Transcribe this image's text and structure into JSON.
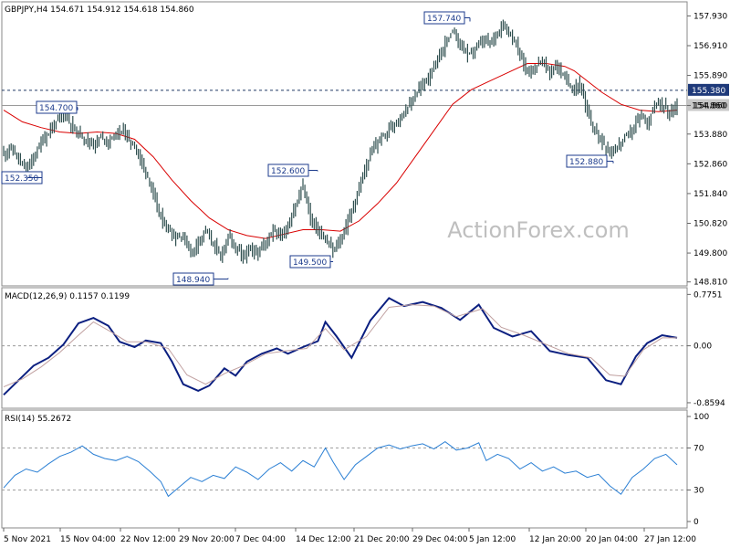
{
  "header": {
    "text": "GBPJPY,H4  154.671 154.912 154.618 154.860"
  },
  "watermark": "ActionForex.com",
  "chart_data": [
    {
      "type": "candlestick",
      "title": "GBPJPY,H4  154.671 154.912 154.618 154.860",
      "ylim": [
        148.8,
        158.1
      ],
      "y_ticks": [
        "157.930",
        "156.910",
        "155.890",
        "154.860",
        "153.880",
        "152.860",
        "151.840",
        "150.820",
        "149.800",
        "148.810"
      ],
      "x_ticks": [
        "5 Nov 2021",
        "15 Nov 04:00",
        "22 Nov 12:00",
        "29 Nov 20:00",
        "7 Dec 04:00",
        "14 Dec 12:00",
        "21 Dec 20:00",
        "29 Dec 04:00",
        "5 Jan 12:00",
        "12 Jan 20:00",
        "20 Jan 04:00",
        "27 Jan 12:00"
      ],
      "levels": [
        {
          "value": 155.38,
          "label": "155.380",
          "style": "dashed"
        },
        {
          "value": 154.86,
          "label": "154.860",
          "style": "solid"
        }
      ],
      "annotations": [
        {
          "label": "152.350",
          "value": 152.35
        },
        {
          "label": "154.700",
          "value": 154.7
        },
        {
          "label": "148.940",
          "value": 148.94
        },
        {
          "label": "152.600",
          "value": 152.6
        },
        {
          "label": "149.500",
          "value": 149.5
        },
        {
          "label": "157.740",
          "value": 157.74
        },
        {
          "label": "152.880",
          "value": 152.88
        }
      ],
      "close_path": [
        [
          0,
          153.2
        ],
        [
          4,
          153.4
        ],
        [
          8,
          153.0
        ],
        [
          12,
          152.6
        ],
        [
          16,
          153.1
        ],
        [
          20,
          153.6
        ],
        [
          24,
          153.9
        ],
        [
          28,
          154.3
        ],
        [
          32,
          154.6
        ],
        [
          36,
          154.2
        ],
        [
          40,
          153.9
        ],
        [
          44,
          153.7
        ],
        [
          48,
          153.5
        ],
        [
          52,
          153.8
        ],
        [
          56,
          153.6
        ],
        [
          60,
          153.9
        ],
        [
          64,
          154.0
        ],
        [
          68,
          153.6
        ],
        [
          72,
          153.2
        ],
        [
          76,
          152.6
        ],
        [
          80,
          151.8
        ],
        [
          84,
          151.0
        ],
        [
          88,
          150.6
        ],
        [
          92,
          150.3
        ],
        [
          96,
          150.4
        ],
        [
          100,
          149.8
        ],
        [
          104,
          150.2
        ],
        [
          108,
          150.6
        ],
        [
          112,
          150.1
        ],
        [
          116,
          149.7
        ],
        [
          120,
          150.4
        ],
        [
          124,
          150.0
        ],
        [
          128,
          149.7
        ],
        [
          132,
          149.9
        ],
        [
          136,
          149.8
        ],
        [
          140,
          150.2
        ],
        [
          144,
          150.6
        ],
        [
          148,
          150.4
        ],
        [
          152,
          150.7
        ],
        [
          156,
          151.4
        ],
        [
          160,
          152.1
        ],
        [
          164,
          151.0
        ],
        [
          168,
          150.6
        ],
        [
          172,
          150.2
        ],
        [
          176,
          149.9
        ],
        [
          180,
          150.2
        ],
        [
          184,
          150.9
        ],
        [
          188,
          151.6
        ],
        [
          192,
          152.4
        ],
        [
          196,
          153.2
        ],
        [
          200,
          153.6
        ],
        [
          204,
          153.9
        ],
        [
          208,
          154.2
        ],
        [
          212,
          154.5
        ],
        [
          216,
          154.8
        ],
        [
          220,
          155.2
        ],
        [
          224,
          155.6
        ],
        [
          228,
          155.9
        ],
        [
          232,
          156.4
        ],
        [
          236,
          157.0
        ],
        [
          240,
          157.4
        ],
        [
          244,
          157.0
        ],
        [
          248,
          156.6
        ],
        [
          252,
          156.8
        ],
        [
          256,
          157.1
        ],
        [
          260,
          157.0
        ],
        [
          264,
          157.4
        ],
        [
          268,
          157.6
        ],
        [
          272,
          157.2
        ],
        [
          276,
          156.6
        ],
        [
          280,
          156.0
        ],
        [
          284,
          156.2
        ],
        [
          288,
          156.4
        ],
        [
          292,
          156.0
        ],
        [
          296,
          156.2
        ],
        [
          300,
          155.8
        ],
        [
          304,
          155.4
        ],
        [
          308,
          155.6
        ],
        [
          312,
          154.6
        ],
        [
          316,
          154.0
        ],
        [
          320,
          153.6
        ],
        [
          324,
          153.2
        ],
        [
          328,
          153.4
        ],
        [
          332,
          153.8
        ],
        [
          336,
          154.0
        ],
        [
          340,
          154.5
        ],
        [
          344,
          154.3
        ],
        [
          348,
          154.8
        ],
        [
          352,
          154.9
        ],
        [
          356,
          154.6
        ],
        [
          360,
          154.86
        ]
      ],
      "ma_path": [
        [
          0,
          154.7
        ],
        [
          10,
          154.3
        ],
        [
          20,
          154.1
        ],
        [
          30,
          153.95
        ],
        [
          40,
          153.9
        ],
        [
          50,
          153.95
        ],
        [
          60,
          153.9
        ],
        [
          70,
          153.7
        ],
        [
          80,
          153.1
        ],
        [
          90,
          152.3
        ],
        [
          100,
          151.6
        ],
        [
          110,
          151.0
        ],
        [
          120,
          150.6
        ],
        [
          130,
          150.4
        ],
        [
          140,
          150.3
        ],
        [
          150,
          150.45
        ],
        [
          160,
          150.6
        ],
        [
          170,
          150.6
        ],
        [
          180,
          150.55
        ],
        [
          190,
          150.9
        ],
        [
          200,
          151.5
        ],
        [
          210,
          152.2
        ],
        [
          220,
          153.1
        ],
        [
          230,
          154.0
        ],
        [
          240,
          154.9
        ],
        [
          250,
          155.4
        ],
        [
          260,
          155.7
        ],
        [
          270,
          156.0
        ],
        [
          280,
          156.3
        ],
        [
          290,
          156.3
        ],
        [
          300,
          156.2
        ],
        [
          305,
          156.05
        ],
        [
          310,
          155.8
        ],
        [
          320,
          155.3
        ],
        [
          330,
          154.9
        ],
        [
          340,
          154.7
        ],
        [
          350,
          154.65
        ],
        [
          360,
          154.7
        ]
      ]
    },
    {
      "type": "line",
      "title": "MACD(12,26,9) 0.1157 0.1199",
      "ylim": [
        -0.86,
        0.78
      ],
      "y_ticks": [
        "0.7751",
        "0.00",
        "-0.8594"
      ],
      "series": [
        {
          "name": "MACD",
          "values": [
            [
              0,
              -0.74
            ],
            [
              8,
              -0.52
            ],
            [
              16,
              -0.3
            ],
            [
              24,
              -0.18
            ],
            [
              32,
              0.02
            ],
            [
              40,
              0.34
            ],
            [
              48,
              0.42
            ],
            [
              56,
              0.3
            ],
            [
              62,
              0.06
            ],
            [
              70,
              -0.02
            ],
            [
              76,
              0.08
            ],
            [
              84,
              0.04
            ],
            [
              90,
              -0.24
            ],
            [
              96,
              -0.58
            ],
            [
              104,
              -0.68
            ],
            [
              110,
              -0.6
            ],
            [
              118,
              -0.34
            ],
            [
              124,
              -0.45
            ],
            [
              130,
              -0.24
            ],
            [
              138,
              -0.12
            ],
            [
              146,
              -0.04
            ],
            [
              152,
              -0.12
            ],
            [
              160,
              -0.02
            ],
            [
              168,
              0.07
            ],
            [
              172,
              0.36
            ],
            [
              178,
              0.14
            ],
            [
              186,
              -0.18
            ],
            [
              196,
              0.38
            ],
            [
              206,
              0.72
            ],
            [
              214,
              0.6
            ],
            [
              224,
              0.66
            ],
            [
              234,
              0.57
            ],
            [
              244,
              0.39
            ],
            [
              254,
              0.62
            ],
            [
              262,
              0.27
            ],
            [
              272,
              0.14
            ],
            [
              282,
              0.22
            ],
            [
              292,
              -0.08
            ],
            [
              302,
              -0.14
            ],
            [
              312,
              -0.18
            ],
            [
              322,
              -0.52
            ],
            [
              330,
              -0.58
            ],
            [
              338,
              -0.16
            ],
            [
              344,
              0.04
            ],
            [
              352,
              0.16
            ],
            [
              360,
              0.12
            ]
          ]
        },
        {
          "name": "Signal",
          "values": [
            [
              0,
              -0.62
            ],
            [
              10,
              -0.5
            ],
            [
              20,
              -0.32
            ],
            [
              30,
              -0.1
            ],
            [
              40,
              0.16
            ],
            [
              48,
              0.36
            ],
            [
              58,
              0.2
            ],
            [
              66,
              0.06
            ],
            [
              76,
              0.06
            ],
            [
              88,
              -0.04
            ],
            [
              98,
              -0.44
            ],
            [
              108,
              -0.58
            ],
            [
              118,
              -0.42
            ],
            [
              128,
              -0.3
            ],
            [
              140,
              -0.12
            ],
            [
              150,
              -0.08
            ],
            [
              162,
              -0.04
            ],
            [
              172,
              0.26
            ],
            [
              182,
              -0.06
            ],
            [
              194,
              0.14
            ],
            [
              206,
              0.58
            ],
            [
              218,
              0.62
            ],
            [
              230,
              0.6
            ],
            [
              242,
              0.44
            ],
            [
              256,
              0.56
            ],
            [
              266,
              0.28
            ],
            [
              278,
              0.16
            ],
            [
              290,
              0.02
            ],
            [
              302,
              -0.12
            ],
            [
              314,
              -0.18
            ],
            [
              324,
              -0.44
            ],
            [
              332,
              -0.46
            ],
            [
              342,
              -0.06
            ],
            [
              352,
              0.12
            ],
            [
              360,
              0.12
            ]
          ]
        }
      ]
    },
    {
      "type": "line",
      "title": "RSI(14) 55.2672",
      "ylim": [
        0,
        100
      ],
      "y_ticks": [
        "100",
        "70",
        "30",
        "0"
      ],
      "series": [
        {
          "name": "RSI",
          "values": [
            [
              0,
              32
            ],
            [
              6,
              44
            ],
            [
              12,
              50
            ],
            [
              18,
              47
            ],
            [
              24,
              55
            ],
            [
              30,
              62
            ],
            [
              36,
              66
            ],
            [
              42,
              72
            ],
            [
              48,
              64
            ],
            [
              54,
              60
            ],
            [
              60,
              58
            ],
            [
              66,
              62
            ],
            [
              72,
              57
            ],
            [
              78,
              48
            ],
            [
              84,
              38
            ],
            [
              88,
              24
            ],
            [
              94,
              33
            ],
            [
              100,
              42
            ],
            [
              106,
              38
            ],
            [
              112,
              44
            ],
            [
              118,
              41
            ],
            [
              124,
              52
            ],
            [
              130,
              47
            ],
            [
              136,
              40
            ],
            [
              142,
              50
            ],
            [
              148,
              56
            ],
            [
              154,
              48
            ],
            [
              160,
              58
            ],
            [
              166,
              52
            ],
            [
              172,
              70
            ],
            [
              176,
              57
            ],
            [
              182,
              40
            ],
            [
              188,
              54
            ],
            [
              194,
              62
            ],
            [
              200,
              70
            ],
            [
              206,
              73
            ],
            [
              212,
              69
            ],
            [
              218,
              72
            ],
            [
              224,
              74
            ],
            [
              230,
              69
            ],
            [
              236,
              76
            ],
            [
              242,
              68
            ],
            [
              248,
              70
            ],
            [
              254,
              75
            ],
            [
              258,
              58
            ],
            [
              264,
              64
            ],
            [
              270,
              60
            ],
            [
              276,
              50
            ],
            [
              282,
              56
            ],
            [
              288,
              48
            ],
            [
              294,
              52
            ],
            [
              300,
              46
            ],
            [
              306,
              48
            ],
            [
              312,
              42
            ],
            [
              318,
              45
            ],
            [
              324,
              34
            ],
            [
              330,
              26
            ],
            [
              336,
              42
            ],
            [
              342,
              50
            ],
            [
              348,
              60
            ],
            [
              354,
              64
            ],
            [
              360,
              54
            ]
          ]
        }
      ]
    }
  ]
}
